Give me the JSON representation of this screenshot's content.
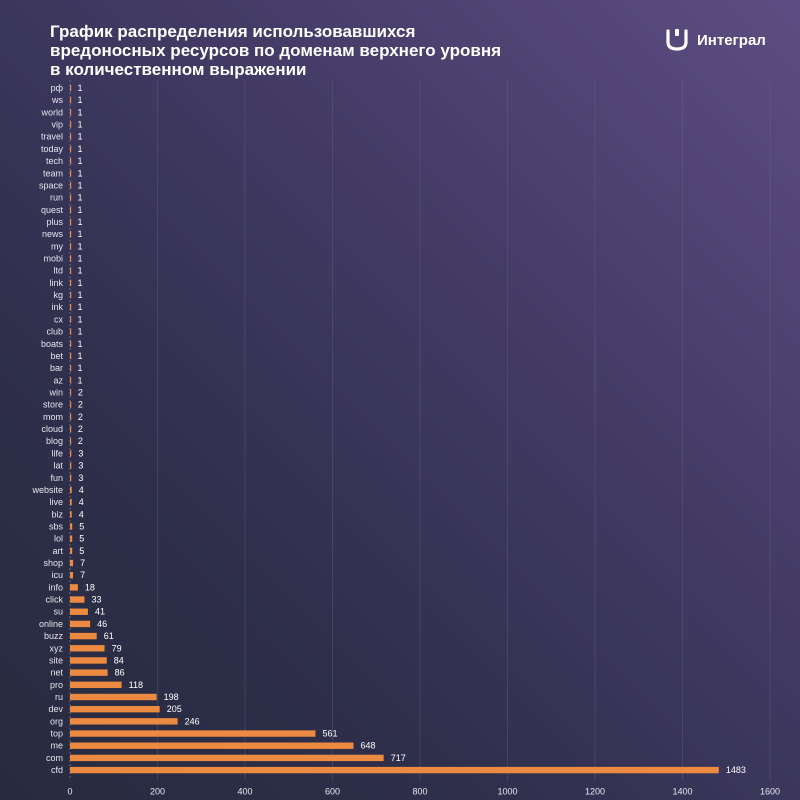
{
  "header": {
    "title_lines": [
      "График распределения использовавшихся",
      "вредоносных ресурсов по доменам верхнего уровня",
      "в количественном выражении"
    ],
    "brand_name": "Интеграл",
    "brand_icon": "integral-logo-icon"
  },
  "colors": {
    "bar": "#ec8a41",
    "grid": "#6a6a88"
  },
  "chart_data": {
    "type": "bar",
    "orientation": "horizontal",
    "categories": [
      "рф",
      "ws",
      "world",
      "vip",
      "travel",
      "today",
      "tech",
      "team",
      "space",
      "run",
      "quest",
      "plus",
      "news",
      "my",
      "mobi",
      "ltd",
      "link",
      "kg",
      "ink",
      "cx",
      "club",
      "boats",
      "bet",
      "bar",
      "az",
      "win",
      "store",
      "mom",
      "cloud",
      "blog",
      "life",
      "lat",
      "fun",
      "website",
      "live",
      "biz",
      "sbs",
      "lol",
      "art",
      "shop",
      "icu",
      "info",
      "click",
      "su",
      "online",
      "buzz",
      "xyz",
      "site",
      "net",
      "pro",
      "ru",
      "dev",
      "org",
      "top",
      "me",
      "com",
      "cfd"
    ],
    "values": [
      1,
      1,
      1,
      1,
      1,
      1,
      1,
      1,
      1,
      1,
      1,
      1,
      1,
      1,
      1,
      1,
      1,
      1,
      1,
      1,
      1,
      1,
      1,
      1,
      1,
      2,
      2,
      2,
      2,
      2,
      3,
      3,
      3,
      4,
      4,
      4,
      5,
      5,
      5,
      7,
      7,
      18,
      33,
      41,
      46,
      61,
      79,
      84,
      86,
      118,
      198,
      205,
      246,
      561,
      648,
      717,
      1483
    ],
    "xlim": [
      0,
      1600
    ],
    "xticks": [
      0,
      200,
      400,
      600,
      800,
      1000,
      1200,
      1400,
      1600
    ],
    "grid": true,
    "xlabel": "",
    "ylabel": ""
  }
}
